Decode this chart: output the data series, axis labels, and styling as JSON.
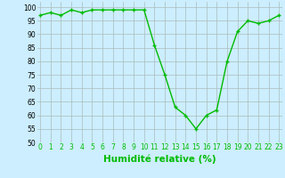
{
  "x": [
    0,
    1,
    2,
    3,
    4,
    5,
    6,
    7,
    8,
    9,
    10,
    11,
    12,
    13,
    14,
    15,
    16,
    17,
    18,
    19,
    20,
    21,
    22,
    23
  ],
  "y": [
    97,
    98,
    97,
    99,
    98,
    99,
    99,
    99,
    99,
    99,
    99,
    86,
    75,
    63,
    60,
    55,
    60,
    62,
    80,
    91,
    95,
    94,
    95,
    97
  ],
  "line_color": "#00bb00",
  "marker_color": "#00bb00",
  "bg_color": "#cceeff",
  "grid_color": "#aabbbb",
  "xlabel": "Humidité relative (%)",
  "xlabel_color": "#00bb00",
  "ylim": [
    50,
    102
  ],
  "xlim": [
    -0.3,
    23.3
  ],
  "yticks": [
    50,
    55,
    60,
    65,
    70,
    75,
    80,
    85,
    90,
    95,
    100
  ],
  "xticks": [
    0,
    1,
    2,
    3,
    4,
    5,
    6,
    7,
    8,
    9,
    10,
    11,
    12,
    13,
    14,
    15,
    16,
    17,
    18,
    19,
    20,
    21,
    22,
    23
  ],
  "tick_label_fontsize": 5.5,
  "xlabel_fontsize": 7.5,
  "marker_size": 3,
  "linewidth": 1.0
}
